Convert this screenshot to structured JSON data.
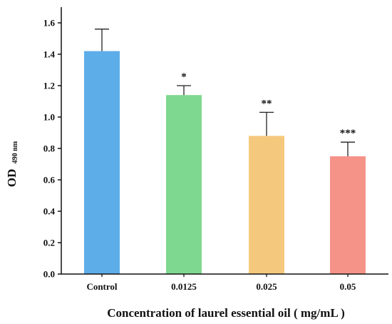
{
  "chart_data": {
    "type": "bar",
    "categories": [
      "Control",
      "0.0125",
      "0.025",
      "0.05"
    ],
    "values": [
      1.42,
      1.14,
      0.88,
      0.75
    ],
    "errors": [
      0.14,
      0.06,
      0.15,
      0.09
    ],
    "significance": [
      "",
      "*",
      "**",
      "***"
    ],
    "colors": [
      "#5dade9",
      "#7ed88f",
      "#f5c97d",
      "#f59389"
    ],
    "title": "",
    "xlabel": "Concentration of laurel essential oil ( mg/mL )",
    "ylabel_main": "OD",
    "ylabel_sub": "490 nm",
    "ylim": [
      0,
      1.7
    ],
    "yticks": [
      "0.0",
      "0.2",
      "0.4",
      "0.6",
      "0.8",
      "1.0",
      "1.2",
      "1.4",
      "1.6"
    ],
    "grid": false,
    "legend": "none"
  }
}
